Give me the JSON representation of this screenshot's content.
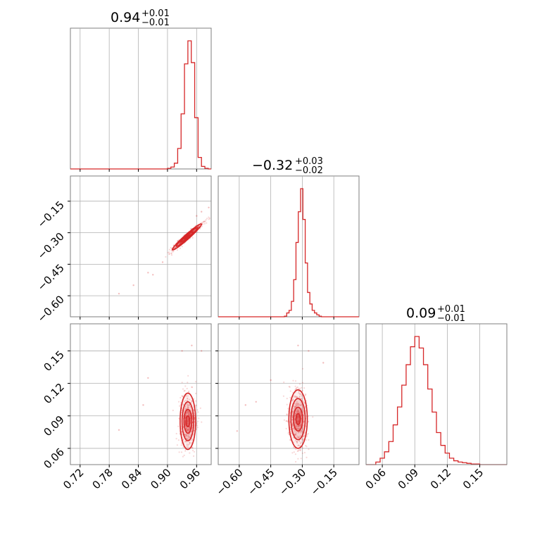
{
  "chart_data": {
    "type": "corner",
    "color": "#d62728",
    "parameters": [
      {
        "title": {
          "median": "0.94",
          "plus": "+0.01",
          "minus": "−0.01"
        },
        "range": [
          0.7,
          0.99
        ],
        "ticks": [
          0.72,
          0.78,
          0.84,
          0.9,
          0.96
        ],
        "tick_labels": [
          "0.72",
          "0.78",
          "0.84",
          "0.90",
          "0.96"
        ],
        "hist_x": [
          0.9,
          0.907,
          0.914,
          0.921,
          0.928,
          0.935,
          0.942,
          0.949,
          0.956,
          0.963,
          0.97,
          0.977
        ],
        "hist_y": [
          0.005,
          0.015,
          0.045,
          0.16,
          0.43,
          0.82,
          1.0,
          0.83,
          0.4,
          0.09,
          0.02,
          0.005
        ]
      },
      {
        "title": {
          "median": "−0.32",
          "plus": "+0.03",
          "minus": "−0.02"
        },
        "range": [
          -0.7,
          -0.03
        ],
        "ticks": [
          -0.6,
          -0.45,
          -0.3,
          -0.15
        ],
        "tick_labels": [
          "−0.60",
          "−0.45",
          "−0.30",
          "−0.15"
        ],
        "hist_x": [
          -0.385,
          -0.374,
          -0.363,
          -0.352,
          -0.341,
          -0.33,
          -0.319,
          -0.308,
          -0.297,
          -0.286,
          -0.275,
          -0.264,
          -0.253,
          -0.242,
          -0.231,
          -0.22
        ],
        "hist_y": [
          0.005,
          0.03,
          0.05,
          0.12,
          0.29,
          0.58,
          0.82,
          1.0,
          0.76,
          0.42,
          0.19,
          0.1,
          0.05,
          0.03,
          0.015,
          0.005
        ]
      },
      {
        "title": {
          "median": "0.09",
          "plus": "+0.01",
          "minus": "−0.01"
        },
        "range": [
          0.045,
          0.175
        ],
        "ticks": [
          0.06,
          0.09,
          0.12,
          0.15
        ],
        "tick_labels": [
          "0.06",
          "0.09",
          "0.12",
          "0.15"
        ],
        "hist_x": [
          0.054,
          0.058,
          0.062,
          0.066,
          0.07,
          0.074,
          0.078,
          0.082,
          0.086,
          0.09,
          0.094,
          0.098,
          0.102,
          0.106,
          0.11,
          0.114,
          0.118,
          0.122,
          0.126,
          0.13,
          0.134,
          0.138,
          0.142,
          0.146
        ],
        "hist_y": [
          0.02,
          0.05,
          0.1,
          0.18,
          0.31,
          0.45,
          0.62,
          0.78,
          0.92,
          1.0,
          0.91,
          0.78,
          0.59,
          0.41,
          0.25,
          0.15,
          0.09,
          0.05,
          0.03,
          0.02,
          0.015,
          0.01,
          0.005,
          0.005
        ]
      }
    ],
    "pairs": [
      {
        "x_param": 0,
        "y_param": 1,
        "x_range": [
          0.7,
          0.99
        ],
        "y_range": [
          -0.7,
          -0.03
        ],
        "center": [
          0.94,
          -0.32
        ],
        "contours": [
          {
            "rx": 0.006,
            "ry": 0.008,
            "rho": 0.93
          },
          {
            "rx": 0.013,
            "ry": 0.025,
            "rho": 0.96
          },
          {
            "rx": 0.022,
            "ry": 0.045,
            "rho": 0.97
          },
          {
            "rx": 0.03,
            "ry": 0.062,
            "rho": 0.97
          }
        ]
      },
      {
        "x_param": 0,
        "y_param": 2,
        "x_range": [
          0.7,
          0.99
        ],
        "y_range": [
          0.045,
          0.175
        ],
        "center": [
          0.942,
          0.085
        ],
        "contours": [
          {
            "rx": 0.004,
            "ry": 0.005,
            "rho": 0.0
          },
          {
            "rx": 0.008,
            "ry": 0.011,
            "rho": 0.0
          },
          {
            "rx": 0.012,
            "ry": 0.018,
            "rho": 0.0
          },
          {
            "rx": 0.016,
            "ry": 0.026,
            "rho": 0.0
          }
        ]
      },
      {
        "x_param": 1,
        "y_param": 2,
        "x_range": [
          -0.7,
          -0.03
        ],
        "y_range": [
          0.045,
          0.175
        ],
        "center": [
          -0.32,
          0.087
        ],
        "contours": [
          {
            "rx": 0.01,
            "ry": 0.005,
            "rho": 0.0
          },
          {
            "rx": 0.022,
            "ry": 0.011,
            "rho": 0.0
          },
          {
            "rx": 0.034,
            "ry": 0.019,
            "rho": 0.0
          },
          {
            "rx": 0.044,
            "ry": 0.027,
            "rho": 0.0
          }
        ]
      }
    ],
    "outlier_points": [
      {
        "pair": 0,
        "points": [
          [
            0.8,
            -0.59
          ],
          [
            0.83,
            -0.55
          ],
          [
            0.86,
            -0.49
          ],
          [
            0.87,
            -0.5
          ],
          [
            0.89,
            -0.44
          ],
          [
            0.96,
            -0.22
          ],
          [
            0.97,
            -0.2
          ],
          [
            0.985,
            -0.18
          ]
        ]
      },
      {
        "pair": 1,
        "points": [
          [
            0.8,
            0.077
          ],
          [
            0.85,
            0.1
          ],
          [
            0.86,
            0.125
          ],
          [
            0.93,
            0.15
          ],
          [
            0.95,
            0.155
          ],
          [
            0.97,
            0.15
          ]
        ]
      },
      {
        "pair": 2,
        "points": [
          [
            -0.61,
            0.076
          ],
          [
            -0.57,
            0.1
          ],
          [
            -0.52,
            0.103
          ],
          [
            -0.45,
            0.123
          ],
          [
            -0.27,
            0.15
          ],
          [
            -0.2,
            0.139
          ],
          [
            -0.32,
            0.155
          ]
        ]
      }
    ],
    "grid": true
  }
}
